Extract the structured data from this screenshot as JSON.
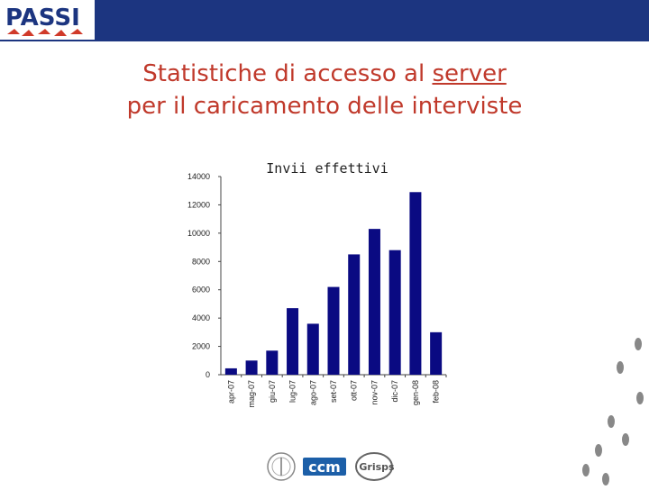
{
  "brand": {
    "logo_text": "PASSI"
  },
  "title": {
    "line1": "Statistiche di accesso al",
    "line1_underlined": "server",
    "line2": "per il caricamento delle interviste"
  },
  "partners": {
    "logo2_text": "ccm",
    "logo3_text": "Grisps"
  },
  "colors": {
    "bar_blue": "#1c3580",
    "bar_fill": "#0a0a82",
    "title_red": "#c0392b",
    "logo_red": "#d03a2a"
  },
  "chart_data": {
    "type": "bar",
    "title": "Invii effettivi",
    "xlabel": "",
    "ylabel": "",
    "ylim": [
      0,
      14000
    ],
    "yticks": [
      0,
      2000,
      4000,
      6000,
      8000,
      10000,
      12000,
      14000
    ],
    "categories": [
      "apr-07",
      "mag-07",
      "giu-07",
      "lug-07",
      "ago-07",
      "set-07",
      "ott-07",
      "nov-07",
      "dic-07",
      "gen-08",
      "feb-08"
    ],
    "values": [
      450,
      1000,
      1700,
      4700,
      3600,
      6200,
      8500,
      10300,
      8800,
      12900,
      3000
    ],
    "grid": false,
    "legend": "none"
  }
}
